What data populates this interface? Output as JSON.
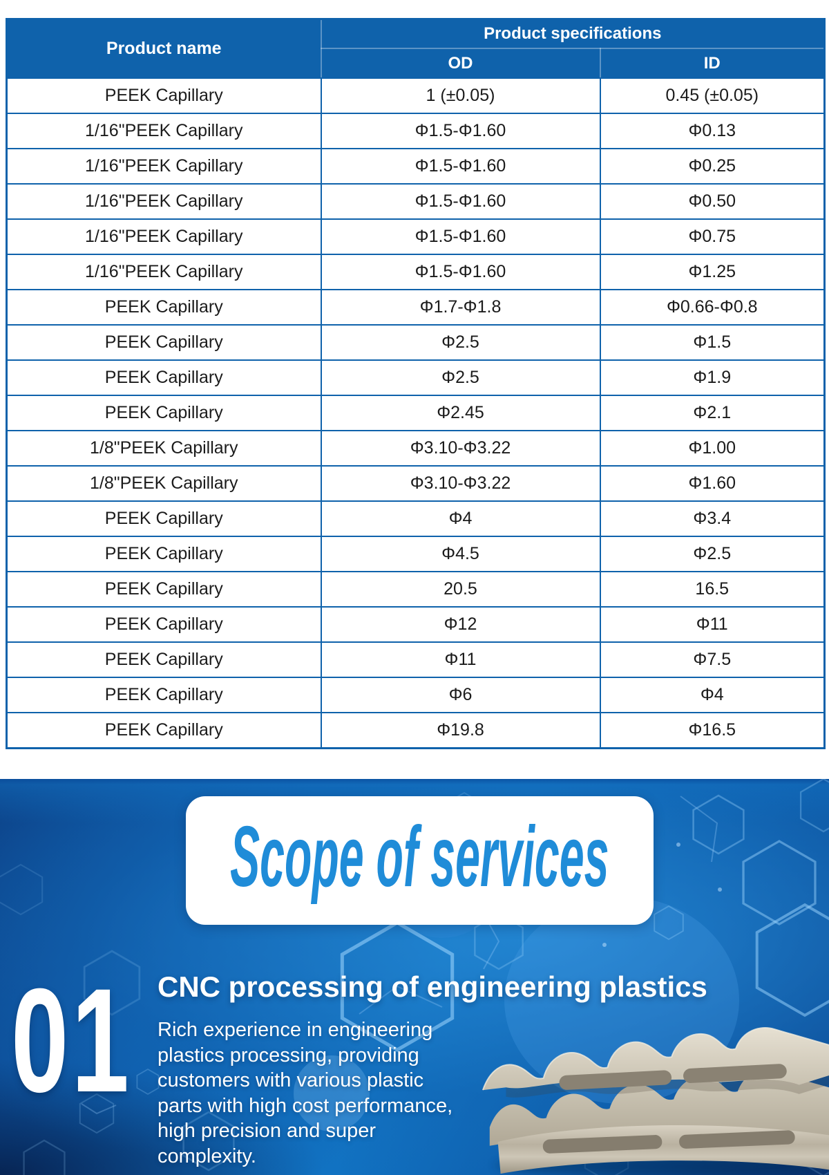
{
  "colors": {
    "table_header_bg": "#0f62ab",
    "table_border": "#0f62ab",
    "table_text": "#1b1b1b",
    "section_bg_bright": "#1173c3",
    "section_bg_dark": "#0a3f87",
    "services_title_color": "#1f8cd8",
    "section_text": "#ffffff",
    "part_beige": "#d9d3c5"
  },
  "table": {
    "header": {
      "product_name": "Product name",
      "product_specifications": "Product specifications",
      "od": "OD",
      "id": "ID"
    },
    "rows": [
      {
        "name": "PEEK Capillary",
        "od": "1 (±0.05)",
        "id": "0.45 (±0.05)"
      },
      {
        "name": "1/16\"PEEK Capillary",
        "od": "Φ1.5-Φ1.60",
        "id": "Φ0.13"
      },
      {
        "name": "1/16\"PEEK Capillary",
        "od": "Φ1.5-Φ1.60",
        "id": "Φ0.25"
      },
      {
        "name": "1/16\"PEEK Capillary",
        "od": "Φ1.5-Φ1.60",
        "id": "Φ0.50"
      },
      {
        "name": "1/16\"PEEK Capillary",
        "od": "Φ1.5-Φ1.60",
        "id": "Φ0.75"
      },
      {
        "name": "1/16\"PEEK Capillary",
        "od": "Φ1.5-Φ1.60",
        "id": "Φ1.25"
      },
      {
        "name": "PEEK Capillary",
        "od": "Φ1.7-Φ1.8",
        "id": "Φ0.66-Φ0.8"
      },
      {
        "name": "PEEK Capillary",
        "od": "Φ2.5",
        "id": "Φ1.5"
      },
      {
        "name": "PEEK Capillary",
        "od": "Φ2.5",
        "id": "Φ1.9"
      },
      {
        "name": "PEEK Capillary",
        "od": "Φ2.45",
        "id": "Φ2.1"
      },
      {
        "name": "1/8\"PEEK Capillary",
        "od": "Φ3.10-Φ3.22",
        "id": "Φ1.00"
      },
      {
        "name": "1/8\"PEEK Capillary",
        "od": "Φ3.10-Φ3.22",
        "id": "Φ1.60"
      },
      {
        "name": "PEEK Capillary",
        "od": "Φ4",
        "id": "Φ3.4"
      },
      {
        "name": "PEEK Capillary",
        "od": "Φ4.5",
        "id": "Φ2.5"
      },
      {
        "name": "PEEK Capillary",
        "od": "20.5",
        "id": "16.5"
      },
      {
        "name": "PEEK Capillary",
        "od": "Φ12",
        "id": "Φ11"
      },
      {
        "name": "PEEK Capillary",
        "od": "Φ11",
        "id": "Φ7.5"
      },
      {
        "name": "PEEK Capillary",
        "od": "Φ6",
        "id": "Φ4"
      },
      {
        "name": "PEEK Capillary",
        "od": "Φ19.8",
        "id": "Φ16.5"
      }
    ]
  },
  "services": {
    "title": "Scope of services",
    "item": {
      "number": "01",
      "title": "CNC processing of engineering plastics",
      "description_lines": [
        "Rich experience in engineering",
        "plastics processing, providing",
        "customers with various plastic",
        "parts with high cost performance,",
        "high precision and super",
        "complexity."
      ]
    }
  }
}
